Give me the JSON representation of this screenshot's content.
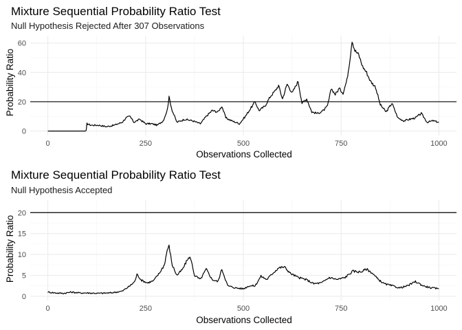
{
  "chart_data": [
    {
      "type": "line",
      "title": "Mixture Sequential Probability Ratio Test",
      "subtitle": "Null Hypothesis Rejected After 307 Observations",
      "xlabel": "Observations Collected",
      "ylabel": "Probability Ratio",
      "xlim": [
        -45,
        1045
      ],
      "ylim": [
        -3,
        65
      ],
      "xticks": [
        0,
        250,
        500,
        750,
        1000
      ],
      "yticks": [
        0,
        20,
        40,
        60
      ],
      "threshold": 20,
      "series": [
        {
          "name": "probability ratio",
          "x": [
            0,
            20,
            40,
            60,
            80,
            98,
            100,
            110,
            130,
            150,
            170,
            190,
            200,
            210,
            220,
            235,
            250,
            265,
            280,
            295,
            305,
            310,
            318,
            330,
            350,
            370,
            390,
            405,
            420,
            435,
            445,
            455,
            470,
            490,
            505,
            520,
            530,
            540,
            555,
            570,
            580,
            590,
            600,
            612,
            625,
            640,
            650,
            662,
            675,
            690,
            705,
            715,
            725,
            735,
            745,
            755,
            765,
            772,
            778,
            785,
            795,
            805,
            815,
            825,
            838,
            850,
            865,
            880,
            895,
            910,
            925,
            940,
            955,
            970,
            985,
            1000
          ],
          "y": [
            0,
            0,
            0,
            0,
            0,
            0,
            5,
            4,
            4,
            3,
            4,
            6,
            9,
            10,
            6,
            8,
            5,
            5,
            4,
            7,
            14,
            23,
            14,
            6,
            8,
            7,
            5,
            10,
            14,
            13,
            17,
            9,
            7,
            5,
            10,
            16,
            20,
            14,
            17,
            24,
            27,
            31,
            22,
            32,
            26,
            34,
            19,
            22,
            13,
            12,
            14,
            17,
            29,
            25,
            29,
            26,
            35,
            48,
            62,
            55,
            52,
            44,
            40,
            34,
            30,
            18,
            13,
            19,
            9,
            7,
            8,
            9,
            12,
            6,
            7,
            6
          ]
        }
      ]
    },
    {
      "type": "line",
      "title": "Mixture Sequential Probability Ratio Test",
      "subtitle": "Null Hypothesis Accepted",
      "xlabel": "Observations Collected",
      "ylabel": "Probability Ratio",
      "xlim": [
        -45,
        1045
      ],
      "ylim": [
        -1,
        23
      ],
      "xticks": [
        0,
        250,
        500,
        750,
        1000
      ],
      "yticks": [
        0,
        5,
        10,
        15,
        20
      ],
      "threshold": 20,
      "series": [
        {
          "name": "probability ratio",
          "x": [
            0,
            20,
            40,
            60,
            80,
            100,
            130,
            160,
            190,
            210,
            222,
            228,
            240,
            255,
            270,
            285,
            298,
            305,
            310,
            318,
            330,
            345,
            358,
            365,
            375,
            390,
            405,
            420,
            435,
            445,
            460,
            480,
            500,
            515,
            530,
            545,
            560,
            575,
            590,
            605,
            620,
            640,
            660,
            680,
            700,
            720,
            740,
            760,
            780,
            800,
            815,
            830,
            845,
            860,
            880,
            900,
            920,
            940,
            960,
            980,
            1000
          ],
          "y": [
            1.0,
            0.8,
            0.7,
            1.0,
            0.8,
            0.8,
            0.7,
            0.8,
            1.2,
            2.5,
            3.5,
            5.2,
            3.8,
            3.2,
            3.7,
            5.5,
            7.5,
            11,
            12,
            7.5,
            5.0,
            6.5,
            9.0,
            9.2,
            5.0,
            4.0,
            6.5,
            4.0,
            3.5,
            6.5,
            2.5,
            2.0,
            1.8,
            2.5,
            2.5,
            4.8,
            4.0,
            5.5,
            6.8,
            7.0,
            5.5,
            4.5,
            4.0,
            3.0,
            3.2,
            4.5,
            4.0,
            4.5,
            6.0,
            5.8,
            6.5,
            5.5,
            4.0,
            3.0,
            2.5,
            2.0,
            2.5,
            3.5,
            2.5,
            2.0,
            1.8
          ]
        }
      ]
    }
  ]
}
